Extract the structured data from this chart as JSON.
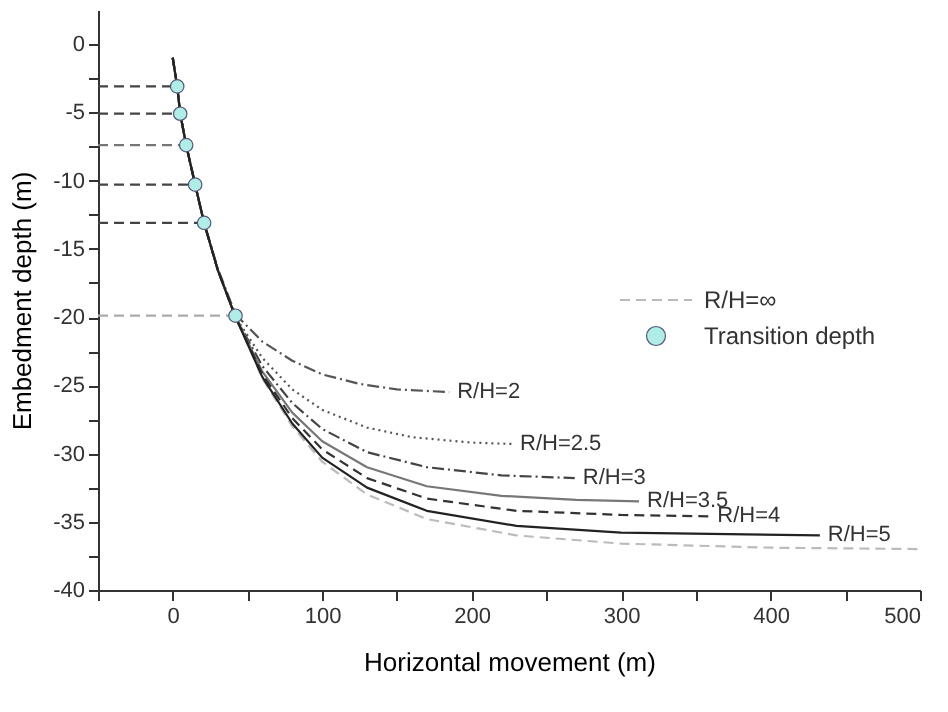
{
  "chart_data": {
    "type": "line",
    "xlabel": "Horizontal movement (m)",
    "ylabel": "Embedment depth (m)",
    "xlim": [
      -50,
      500
    ],
    "ylim": [
      -40,
      2.5
    ],
    "xticks": [
      {
        "value": -50,
        "label": null
      },
      0,
      {
        "value": 50,
        "label": null
      },
      100,
      {
        "value": 150,
        "label": null
      },
      200,
      {
        "value": 250,
        "label": null
      },
      300,
      {
        "value": 350,
        "label": null
      },
      400,
      {
        "value": 450,
        "label": null
      },
      500
    ],
    "yticks": [
      0,
      {
        "value": -2.5,
        "label": null
      },
      -5,
      {
        "value": -7.5,
        "label": null
      },
      -10,
      {
        "value": -12.5,
        "label": null
      },
      -15,
      {
        "value": -17.5,
        "label": null
      },
      -20,
      {
        "value": -22.5,
        "label": null
      },
      -25,
      {
        "value": -27.5,
        "label": null
      },
      -30,
      {
        "value": -32.5,
        "label": null
      },
      -35,
      {
        "value": -37.5,
        "label": null
      },
      -40
    ],
    "grid": false,
    "legend": "right",
    "series": [
      {
        "color": "#444444",
        "line_style": "dashed",
        "x": [
          -50,
          3
        ],
        "values": [
          -3.1,
          -3.1
        ]
      },
      {
        "color": "#444444",
        "line_style": "dashed",
        "x": [
          -50,
          5
        ],
        "values": [
          -5.1,
          -5.1
        ]
      },
      {
        "color": "#777777",
        "line_style": "dashed",
        "x": [
          -50,
          9
        ],
        "values": [
          -7.4,
          -7.4
        ]
      },
      {
        "color": "#444444",
        "line_style": "dashed",
        "x": [
          -50,
          15
        ],
        "values": [
          -10.3,
          -10.3
        ]
      },
      {
        "color": "#444444",
        "line_style": "dashed",
        "x": [
          -50,
          21
        ],
        "values": [
          -13.1,
          -13.1
        ]
      },
      {
        "color": "#aaaaaa",
        "line_style": "dashed",
        "x": [
          -50,
          42
        ],
        "values": [
          -19.9,
          -19.9
        ]
      },
      {
        "name": "R/H=∞",
        "color": "#bbbbbb",
        "line_style": "dashed",
        "x": [
          0,
          3,
          5,
          9,
          15,
          21,
          30,
          42,
          60,
          80,
          100,
          130,
          170,
          230,
          300,
          400,
          500
        ],
        "values": [
          -1,
          -3.1,
          -5.1,
          -7.4,
          -10.3,
          -13.1,
          -16.5,
          -19.9,
          -24.5,
          -28,
          -30.6,
          -33,
          -34.8,
          -36,
          -36.6,
          -36.9,
          -37
        ]
      },
      {
        "name": "R/H=2",
        "color": "#555555",
        "line_style": "dashdot",
        "x": [
          0,
          3,
          5,
          9,
          15,
          21,
          30,
          42,
          60,
          80,
          100,
          125,
          150,
          185
        ],
        "values": [
          -1,
          -3.1,
          -5.1,
          -7.4,
          -10.3,
          -13.1,
          -16.4,
          -19.8,
          -21.8,
          -23.2,
          -24.2,
          -24.9,
          -25.3,
          -25.5
        ]
      },
      {
        "name": "R/H=2.5",
        "color": "#555555",
        "line_style": "dotted",
        "x": [
          0,
          3,
          5,
          9,
          15,
          21,
          30,
          42,
          60,
          80,
          100,
          130,
          160,
          200,
          227
        ],
        "values": [
          -1,
          -3.1,
          -5.1,
          -7.4,
          -10.3,
          -13.1,
          -16.5,
          -20,
          -23,
          -25.3,
          -26.8,
          -28.1,
          -28.8,
          -29.2,
          -29.3
        ]
      },
      {
        "name": "R/H=3",
        "color": "#444444",
        "line_style": "dashdot",
        "x": [
          0,
          3,
          5,
          9,
          15,
          21,
          30,
          42,
          60,
          80,
          100,
          130,
          170,
          220,
          269
        ],
        "values": [
          -1,
          -3.1,
          -5.1,
          -7.4,
          -10.3,
          -13.1,
          -16.5,
          -20,
          -23.6,
          -26.3,
          -28.2,
          -29.9,
          -31,
          -31.6,
          -31.8
        ]
      },
      {
        "name": "R/H=3.5",
        "color": "#777777",
        "line_style": "solid",
        "x": [
          0,
          3,
          5,
          9,
          15,
          21,
          30,
          42,
          60,
          80,
          100,
          130,
          170,
          220,
          270,
          312
        ],
        "values": [
          -1,
          -3.1,
          -5.1,
          -7.4,
          -10.3,
          -13.1,
          -16.5,
          -20,
          -24,
          -27,
          -29.1,
          -31,
          -32.4,
          -33.1,
          -33.4,
          -33.5
        ]
      },
      {
        "name": "R/H=4",
        "color": "#333333",
        "line_style": "dashed",
        "x": [
          0,
          3,
          5,
          9,
          15,
          21,
          30,
          42,
          60,
          80,
          100,
          130,
          170,
          230,
          300,
          359
        ],
        "values": [
          -1,
          -3.1,
          -5.1,
          -7.4,
          -10.3,
          -13.1,
          -16.5,
          -20,
          -24.2,
          -27.4,
          -29.7,
          -31.8,
          -33.3,
          -34.2,
          -34.5,
          -34.6
        ]
      },
      {
        "name": "R/H=5",
        "color": "#222222",
        "line_style": "solid",
        "x": [
          0,
          3,
          5,
          9,
          15,
          21,
          30,
          42,
          60,
          80,
          100,
          130,
          170,
          230,
          300,
          433
        ],
        "values": [
          -1,
          -3.1,
          -5.1,
          -7.4,
          -10.3,
          -13.1,
          -16.5,
          -20,
          -24.4,
          -27.8,
          -30.3,
          -32.5,
          -34.2,
          -35.3,
          -35.8,
          -36
        ]
      },
      {
        "name": "Transition depth",
        "type": "scatter",
        "marker": "circle",
        "color": "#aeeee6",
        "x": [
          3,
          5,
          9,
          15,
          21,
          42
        ],
        "values": [
          -3.1,
          -5.1,
          -7.4,
          -10.3,
          -13.1,
          -19.9
        ]
      }
    ]
  }
}
